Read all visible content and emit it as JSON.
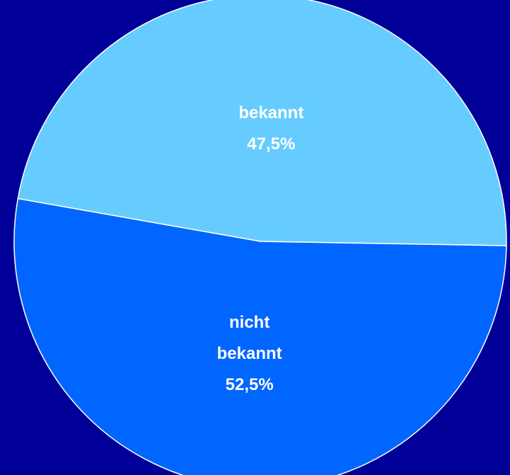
{
  "chart_data": {
    "type": "pie",
    "categories": [
      "bekannt",
      "nicht bekannt"
    ],
    "values": [
      47.5,
      52.5
    ],
    "value_labels": [
      "47,5%",
      "52,5%"
    ],
    "colors": [
      "#66ccff",
      "#0066ff"
    ]
  }
}
